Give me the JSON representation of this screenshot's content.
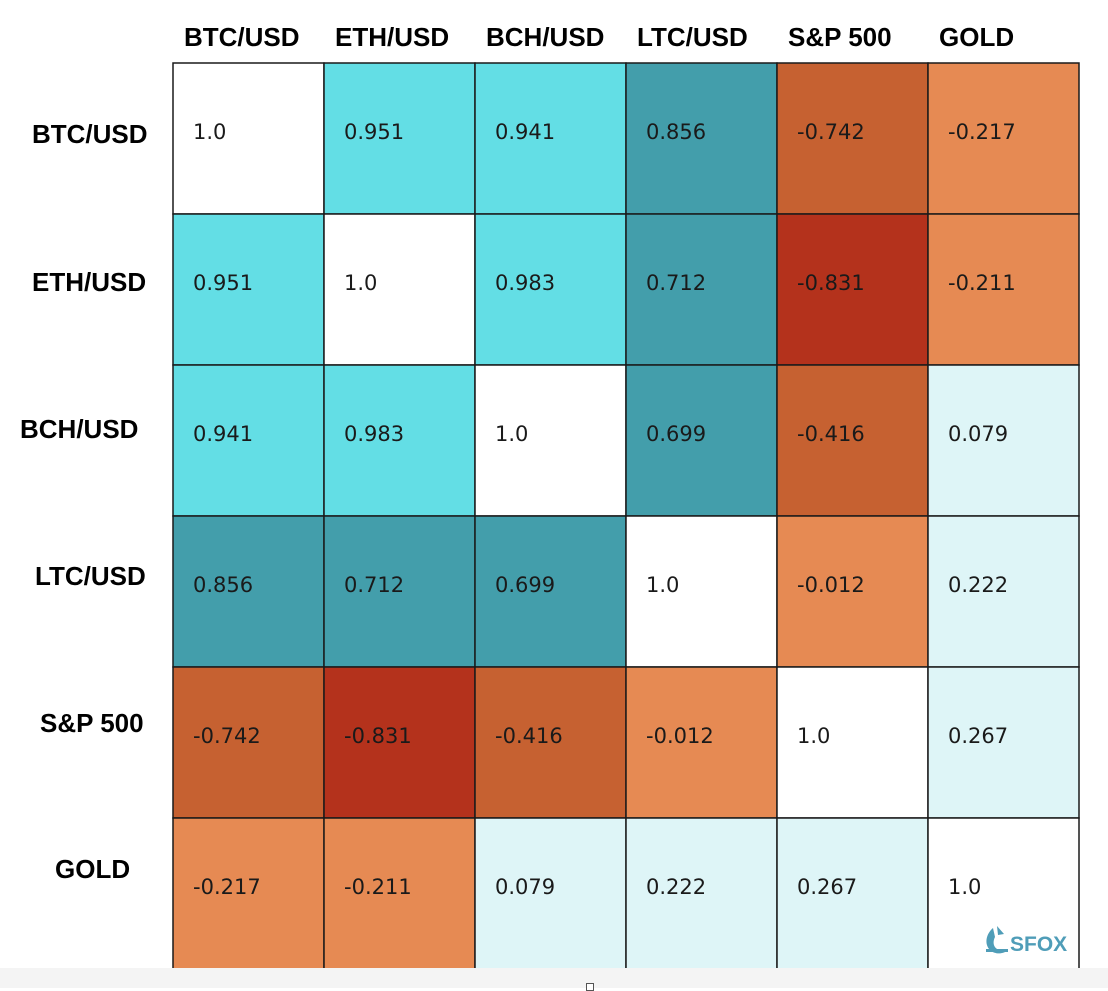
{
  "chart_data": {
    "type": "heatmap",
    "columns": [
      "BTC/USD",
      "ETH/USD",
      "BCH/USD",
      "LTC/USD",
      "S&P 500",
      "GOLD"
    ],
    "rows": [
      "BTC/USD",
      "ETH/USD",
      "BCH/USD",
      "LTC/USD",
      "S&P 500",
      "GOLD"
    ],
    "values": [
      [
        "1.0",
        "0.951",
        "0.941",
        "0.856",
        "-0.742",
        "-0.217"
      ],
      [
        "0.951",
        "1.0",
        "0.983",
        "0.712",
        "-0.831",
        "-0.211"
      ],
      [
        "0.941",
        "0.983",
        "1.0",
        "0.699",
        "-0.416",
        "0.079"
      ],
      [
        "0.856",
        "0.712",
        "0.699",
        "1.0",
        "-0.012",
        "0.222"
      ],
      [
        "-0.742",
        "-0.831",
        "-0.416",
        "-0.012",
        "1.0",
        "0.267"
      ],
      [
        "-0.217",
        "-0.211",
        "0.079",
        "0.222",
        "0.267",
        "1.0"
      ]
    ],
    "colors": [
      [
        "#ffffff",
        "#63dee5",
        "#63dee5",
        "#439eab",
        "#c66131",
        "#e68a53"
      ],
      [
        "#63dee5",
        "#ffffff",
        "#63dee5",
        "#439eab",
        "#b4321c",
        "#e68a53"
      ],
      [
        "#63dee5",
        "#63dee5",
        "#ffffff",
        "#439eab",
        "#c66131",
        "#def5f7"
      ],
      [
        "#439eab",
        "#439eab",
        "#439eab",
        "#ffffff",
        "#e68a53",
        "#def5f7"
      ],
      [
        "#c66131",
        "#b4321c",
        "#c66131",
        "#e68a53",
        "#ffffff",
        "#def5f7"
      ],
      [
        "#e68a53",
        "#e68a53",
        "#def5f7",
        "#def5f7",
        "#def5f7",
        "#ffffff"
      ]
    ],
    "grid": true
  },
  "watermark": {
    "text": "SFOX",
    "icon": "sfox-logo-icon",
    "color": "#4f9db8"
  }
}
